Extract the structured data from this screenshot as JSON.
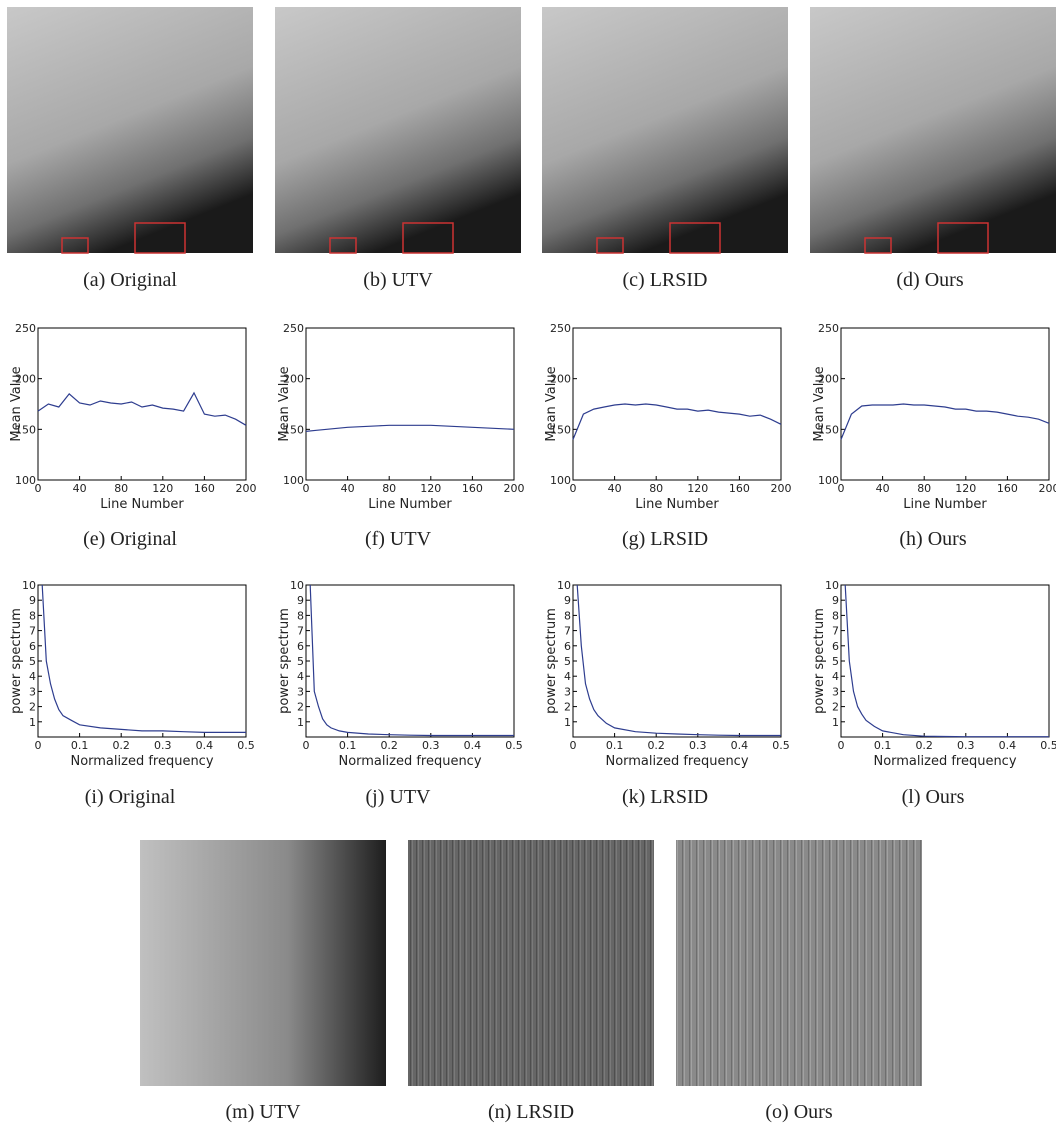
{
  "images": [
    {
      "caption": "(a)  Original"
    },
    {
      "caption": "(b)  UTV"
    },
    {
      "caption": "(c)  LRSID"
    },
    {
      "caption": "(d)  Ours"
    }
  ],
  "chart_data": [
    {
      "type": "line",
      "caption": "(e)  Original",
      "x_label": "Line Number",
      "y_label": "Mean  Value",
      "color": "#2e3d8f",
      "x": [
        0,
        10,
        20,
        30,
        40,
        50,
        60,
        70,
        80,
        90,
        100,
        110,
        120,
        130,
        140,
        150,
        160,
        170,
        180,
        190,
        200
      ],
      "values": [
        168,
        175,
        172,
        185,
        176,
        174,
        178,
        176,
        175,
        177,
        172,
        174,
        171,
        170,
        168,
        186,
        165,
        163,
        164,
        160,
        154
      ],
      "xlim": [
        0,
        200
      ],
      "ylim": [
        100,
        250
      ],
      "xticks": [
        0,
        40,
        80,
        120,
        160,
        200
      ],
      "yticks": [
        100,
        150,
        200,
        250
      ]
    },
    {
      "type": "line",
      "caption": "(f)  UTV",
      "x_label": "Line Number",
      "y_label": "Mean  Value",
      "color": "#2e3d8f",
      "x": [
        0,
        10,
        20,
        30,
        40,
        50,
        60,
        70,
        80,
        90,
        100,
        110,
        120,
        130,
        140,
        150,
        160,
        170,
        180,
        190,
        200
      ],
      "values": [
        148,
        149,
        150,
        151,
        152,
        152.5,
        153,
        153.5,
        154,
        154,
        154,
        154,
        154,
        153.5,
        153,
        152.5,
        152,
        151.5,
        151,
        150.5,
        150
      ],
      "xlim": [
        0,
        200
      ],
      "ylim": [
        100,
        250
      ],
      "xticks": [
        0,
        40,
        80,
        120,
        160,
        200
      ],
      "yticks": [
        100,
        150,
        200,
        250
      ]
    },
    {
      "type": "line",
      "caption": "(g)  LRSID",
      "x_label": "Line Number",
      "y_label": "Mean  Value",
      "color": "#2e3d8f",
      "x": [
        0,
        10,
        20,
        30,
        40,
        50,
        60,
        70,
        80,
        90,
        100,
        110,
        120,
        130,
        140,
        150,
        160,
        170,
        180,
        190,
        200
      ],
      "values": [
        140,
        165,
        170,
        172,
        174,
        175,
        174,
        175,
        174,
        172,
        170,
        170,
        168,
        169,
        167,
        166,
        165,
        163,
        164,
        160,
        155
      ],
      "xlim": [
        0,
        200
      ],
      "ylim": [
        100,
        250
      ],
      "xticks": [
        0,
        40,
        80,
        120,
        160,
        200
      ],
      "yticks": [
        100,
        150,
        200,
        250
      ]
    },
    {
      "type": "line",
      "caption": "(h)  Ours",
      "x_label": "Line Number",
      "y_label": "Mean  Value",
      "color": "#2e3d8f",
      "x": [
        0,
        10,
        20,
        30,
        40,
        50,
        60,
        70,
        80,
        90,
        100,
        110,
        120,
        130,
        140,
        150,
        160,
        170,
        180,
        190,
        200
      ],
      "values": [
        140,
        165,
        173,
        174,
        174,
        174,
        175,
        174,
        174,
        173,
        172,
        170,
        170,
        168,
        168,
        167,
        165,
        163,
        162,
        160,
        156
      ],
      "xlim": [
        0,
        200
      ],
      "ylim": [
        100,
        250
      ],
      "xticks": [
        0,
        40,
        80,
        120,
        160,
        200
      ],
      "yticks": [
        100,
        150,
        200,
        250
      ]
    },
    {
      "type": "line",
      "caption": "(i)  Original",
      "x_label": "Normalized frequency",
      "y_label": "power spectrum",
      "color": "#2e3d8f",
      "x": [
        0.01,
        0.02,
        0.03,
        0.04,
        0.05,
        0.06,
        0.08,
        0.1,
        0.15,
        0.2,
        0.25,
        0.3,
        0.35,
        0.4,
        0.45,
        0.5
      ],
      "values": [
        10,
        5,
        3.5,
        2.5,
        1.8,
        1.4,
        1.1,
        0.8,
        0.6,
        0.5,
        0.4,
        0.4,
        0.35,
        0.3,
        0.3,
        0.3
      ],
      "xlim": [
        0,
        0.5
      ],
      "ylim": [
        0,
        10
      ],
      "xticks": [
        0,
        0.1,
        0.2,
        0.3,
        0.4,
        0.5
      ],
      "yticks": [
        1,
        2,
        3,
        4,
        5,
        6,
        7,
        8,
        9,
        10
      ]
    },
    {
      "type": "line",
      "caption": "(j)  UTV",
      "x_label": "Normalized frequency",
      "y_label": "power spectrum",
      "color": "#2e3d8f",
      "x": [
        0.01,
        0.02,
        0.03,
        0.04,
        0.05,
        0.06,
        0.08,
        0.1,
        0.15,
        0.2,
        0.25,
        0.3,
        0.35,
        0.4,
        0.45,
        0.5
      ],
      "values": [
        10,
        3,
        2,
        1.2,
        0.8,
        0.6,
        0.4,
        0.3,
        0.2,
        0.15,
        0.12,
        0.1,
        0.1,
        0.1,
        0.1,
        0.1
      ],
      "xlim": [
        0,
        0.5
      ],
      "ylim": [
        0,
        10
      ],
      "xticks": [
        0,
        0.1,
        0.2,
        0.3,
        0.4,
        0.5
      ],
      "yticks": [
        1,
        2,
        3,
        4,
        5,
        6,
        7,
        8,
        9,
        10
      ]
    },
    {
      "type": "line",
      "caption": "(k)  LRSID",
      "x_label": "Normalized frequency",
      "y_label": "power spectrum",
      "color": "#2e3d8f",
      "x": [
        0.01,
        0.02,
        0.03,
        0.04,
        0.05,
        0.06,
        0.08,
        0.1,
        0.15,
        0.2,
        0.25,
        0.3,
        0.35,
        0.4,
        0.45,
        0.5
      ],
      "values": [
        10,
        6,
        3.5,
        2.5,
        1.8,
        1.4,
        0.9,
        0.6,
        0.35,
        0.25,
        0.2,
        0.15,
        0.12,
        0.1,
        0.1,
        0.1
      ],
      "xlim": [
        0,
        0.5
      ],
      "ylim": [
        0,
        10
      ],
      "xticks": [
        0,
        0.1,
        0.2,
        0.3,
        0.4,
        0.5
      ],
      "yticks": [
        1,
        2,
        3,
        4,
        5,
        6,
        7,
        8,
        9,
        10
      ]
    },
    {
      "type": "line",
      "caption": "(l)  Ours",
      "x_label": "Normalized frequency",
      "y_label": "power spectrum",
      "color": "#2e3d8f",
      "x": [
        0.01,
        0.02,
        0.03,
        0.04,
        0.05,
        0.06,
        0.08,
        0.1,
        0.15,
        0.2,
        0.25,
        0.3,
        0.35,
        0.4,
        0.45,
        0.5
      ],
      "values": [
        10,
        5,
        3,
        2,
        1.5,
        1.1,
        0.7,
        0.4,
        0.15,
        0.05,
        0.03,
        0.02,
        0.02,
        0.02,
        0.02,
        0.02
      ],
      "xlim": [
        0,
        0.5
      ],
      "ylim": [
        0,
        10
      ],
      "xticks": [
        0,
        0.1,
        0.2,
        0.3,
        0.4,
        0.5
      ],
      "yticks": [
        1,
        2,
        3,
        4,
        5,
        6,
        7,
        8,
        9,
        10
      ]
    }
  ],
  "stripe_images": [
    {
      "caption": "(m)  UTV"
    },
    {
      "caption": "(n)  LRSID"
    },
    {
      "caption": "(o)  Ours"
    }
  ]
}
